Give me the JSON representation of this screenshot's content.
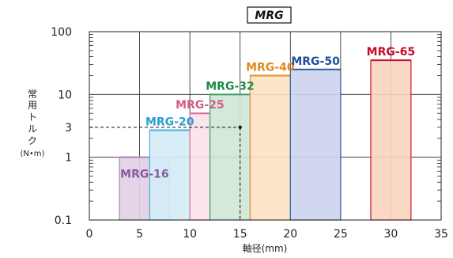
{
  "chart_data": {
    "type": "bar",
    "title": "MRG",
    "xlabel": "軸径(mm)",
    "ylabel": [
      "常",
      "用",
      "ト",
      "ル",
      "ク",
      "(N•m)"
    ],
    "xlim": [
      0,
      35
    ],
    "ylim": [
      0.1,
      100
    ],
    "y_scale": "log",
    "grid": true,
    "x_ticks": [
      "0",
      "5",
      "10",
      "15",
      "20",
      "25",
      "30",
      "35"
    ],
    "y_ticks": [
      {
        "label": "100",
        "value": 100
      },
      {
        "label": "10",
        "value": 10
      },
      {
        "label": "3",
        "value": 3
      },
      {
        "label": "1",
        "value": 1
      },
      {
        "label": "0.1",
        "value": 0.1
      }
    ],
    "series": [
      {
        "name": "MRG-16",
        "shaft_from": 3,
        "shaft_to": 8,
        "torque": 1.0,
        "fill": "#e2cfe6",
        "stroke": "#a784b4",
        "label_color": "#8a5a9c"
      },
      {
        "name": "MRG-20",
        "shaft_from": 6,
        "shaft_to": 10,
        "torque": 2.7,
        "fill": "#d4ecf6",
        "stroke": "#46b2de",
        "label_color": "#2a9fd0"
      },
      {
        "name": "MRG-25",
        "shaft_from": 10,
        "shaft_to": 12,
        "torque": 5.0,
        "fill": "#fbe1ea",
        "stroke": "#dc6c94",
        "label_color": "#d45c88"
      },
      {
        "name": "MRG-32",
        "shaft_from": 12,
        "shaft_to": 16,
        "torque": 10.0,
        "fill": "#cfe7d6",
        "stroke": "#3fa062",
        "label_color": "#1f8a48"
      },
      {
        "name": "MRG-40",
        "shaft_from": 16,
        "shaft_to": 20,
        "torque": 20.0,
        "fill": "#fde2c4",
        "stroke": "#e6902e",
        "label_color": "#e08a22"
      },
      {
        "name": "MRG-50",
        "shaft_from": 20,
        "shaft_to": 25,
        "torque": 25.0,
        "fill": "#cdd3ee",
        "stroke": "#2a5ea6",
        "label_color": "#1f4f9e"
      },
      {
        "name": "MRG-65",
        "shaft_from": 28,
        "shaft_to": 32,
        "torque": 35.0,
        "fill": "#fbd3c0",
        "stroke": "#c8112e",
        "label_color": "#c40a28"
      }
    ],
    "reference_point": {
      "x": 15,
      "y": 3
    }
  }
}
